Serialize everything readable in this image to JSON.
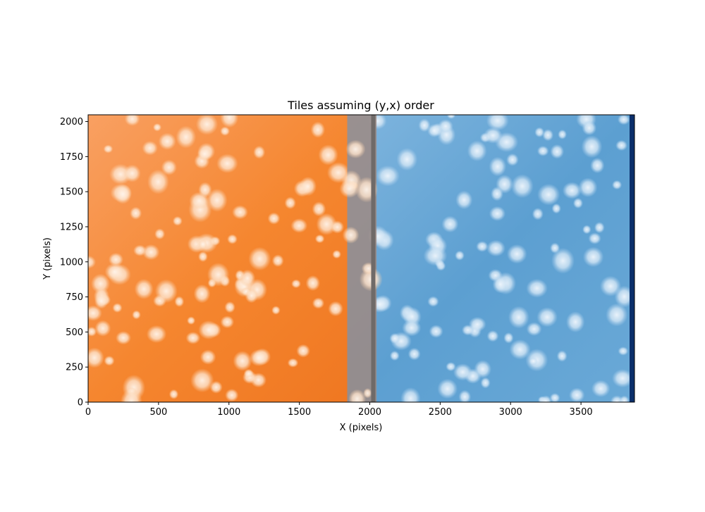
{
  "chart_data": {
    "type": "heatmap",
    "title": "Tiles assuming (y,x) order",
    "xlabel": "X (pixels)",
    "ylabel": "Y (pixels)",
    "xlim": [
      0,
      3880
    ],
    "ylim": [
      0,
      2048
    ],
    "x_ticks": [
      0,
      500,
      1000,
      1500,
      2000,
      2500,
      3000,
      3500
    ],
    "y_ticks": [
      0,
      250,
      500,
      750,
      1000,
      1250,
      1500,
      1750,
      2000
    ],
    "grid": false,
    "tiles": [
      {
        "colormap": "orange",
        "base_color": "#f5812d",
        "x_range": [
          0,
          2048
        ],
        "y_range": [
          0,
          2048
        ]
      },
      {
        "colormap": "blue",
        "base_color": "#5a9fd0",
        "x_range": [
          1840,
          3880
        ],
        "y_range": [
          0,
          2048
        ]
      }
    ],
    "overlap_region": {
      "x_range": [
        1840,
        2048
      ],
      "color": "#9e8a82"
    },
    "seam_band": {
      "x_range": [
        2010,
        2040
      ],
      "color": "#6f6a68"
    },
    "right_edge_band": {
      "x_range": [
        3845,
        3880
      ],
      "color": "#0b2f6b"
    }
  }
}
